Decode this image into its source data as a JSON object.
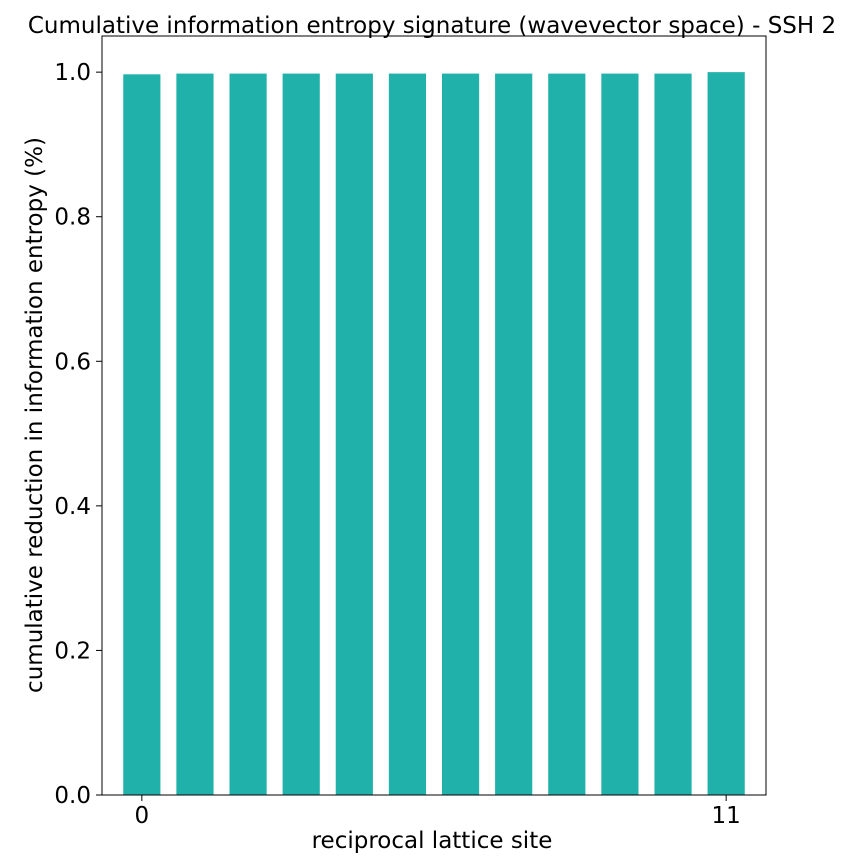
{
  "chart_data": {
    "type": "bar",
    "title": "Cumulative information entropy signature (wavevector space) - SSH 2",
    "xlabel": "reciprocal lattice site",
    "ylabel": "cumulative reduction in information entropy (%)",
    "x": [
      0,
      1,
      2,
      3,
      4,
      5,
      6,
      7,
      8,
      9,
      10,
      11
    ],
    "values": [
      0.997,
      0.998,
      0.998,
      0.998,
      0.998,
      0.998,
      0.998,
      0.998,
      0.998,
      0.998,
      0.998,
      1.0
    ],
    "xticks": [
      0,
      11
    ],
    "xtick_labels": [
      "0",
      "11"
    ],
    "yticks": [
      0.0,
      0.2,
      0.4,
      0.6,
      0.8,
      1.0
    ],
    "ytick_labels": [
      "0.0",
      "0.2",
      "0.4",
      "0.6",
      "0.8",
      "1.0"
    ],
    "xlim": [
      -0.75,
      11.75
    ],
    "ylim": [
      0,
      1.05
    ],
    "bar_color": "#20b2aa",
    "grid": false
  }
}
